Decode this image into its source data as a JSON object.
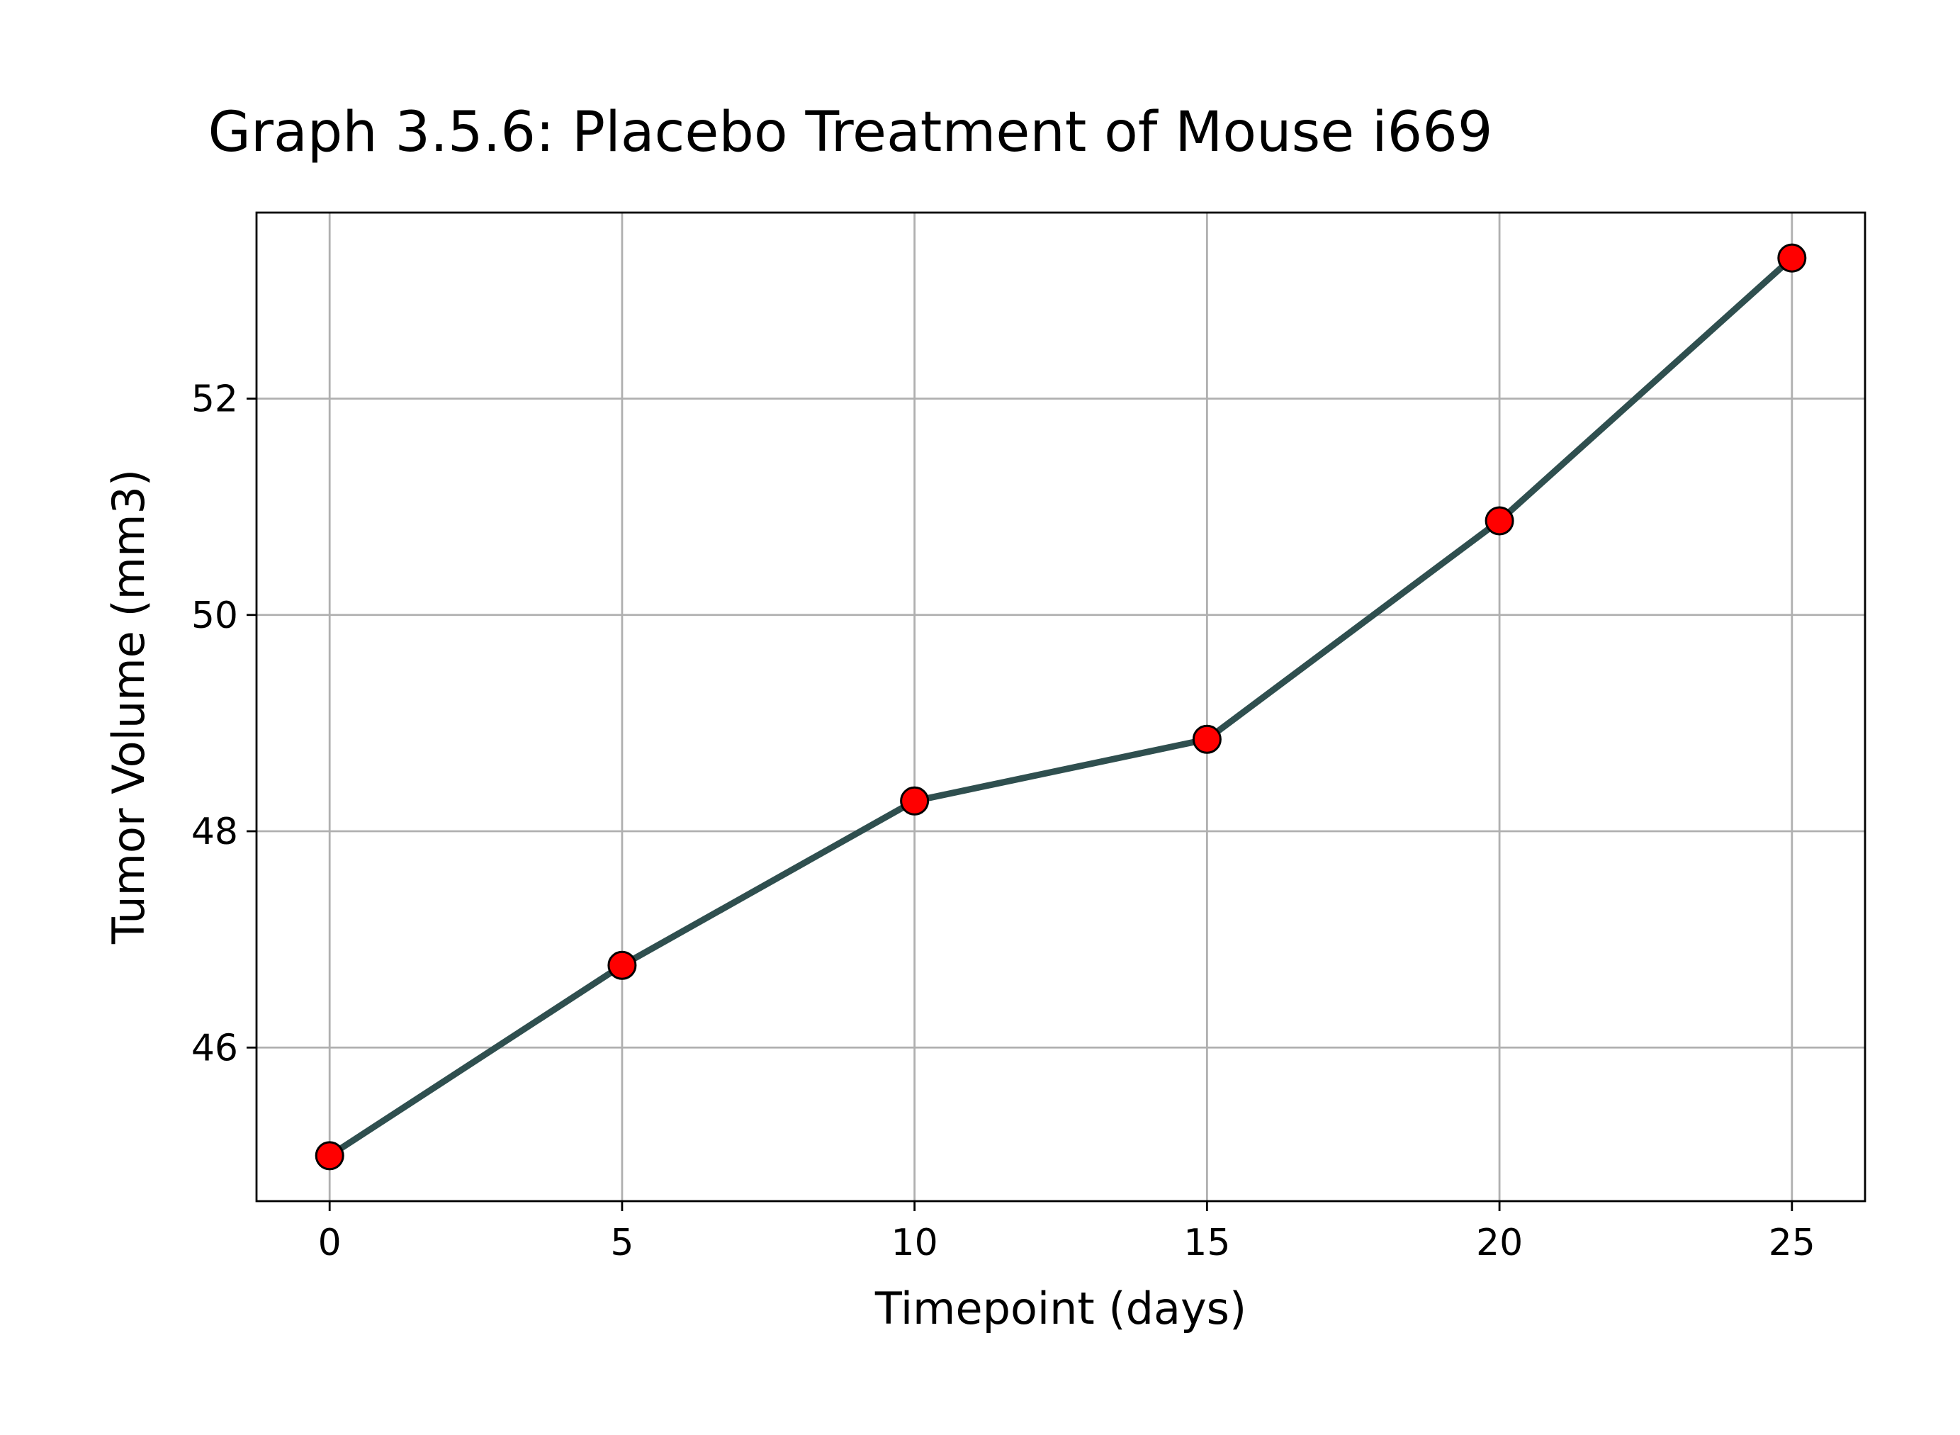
{
  "chart_data": {
    "type": "line",
    "title": "Graph 3.5.6: Placebo Treatment of Mouse i669",
    "xlabel": "Timepoint (days)",
    "ylabel": "Tumor Volume (mm3)",
    "x": [
      0,
      5,
      10,
      15,
      20,
      25
    ],
    "series": [
      {
        "values": [
          45.0,
          46.76,
          48.28,
          48.85,
          50.87,
          53.3
        ],
        "line_color": "#2f4f4f",
        "marker_color": "#ff0000",
        "marker_edge_color": "#000000"
      }
    ],
    "xticks": [
      0,
      5,
      10,
      15,
      20,
      25
    ],
    "xtick_labels": [
      "0",
      "5",
      "10",
      "15",
      "20",
      "25"
    ],
    "yticks": [
      46,
      48,
      50,
      52
    ],
    "ytick_labels": [
      "46",
      "48",
      "50",
      "52"
    ],
    "xlim": [
      -1.25,
      26.25
    ],
    "ylim": [
      44.58,
      53.72
    ],
    "grid": true
  }
}
